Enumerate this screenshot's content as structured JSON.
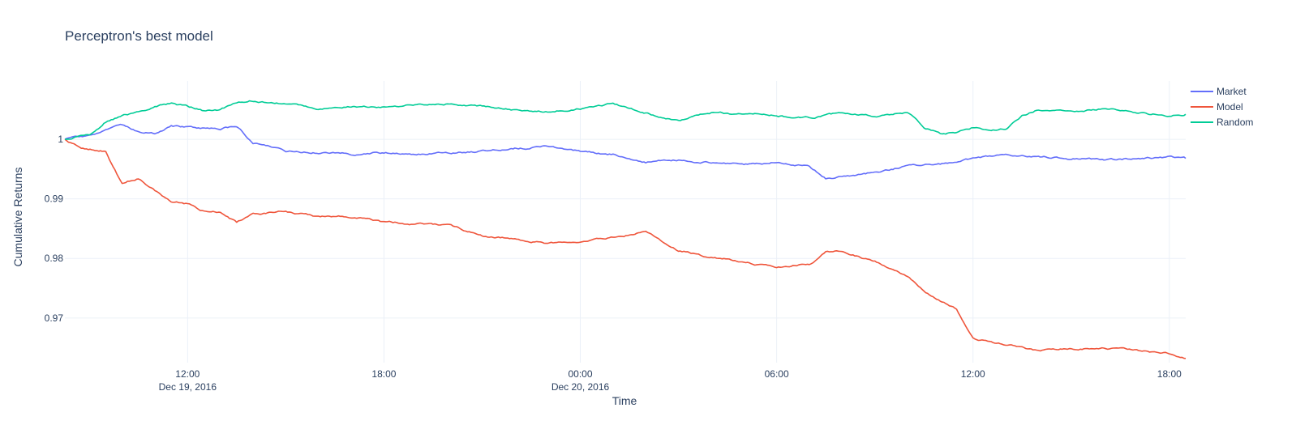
{
  "chart_data": {
    "type": "line",
    "title": "Perceptron's best model",
    "xlabel": "Time",
    "ylabel": "Cumulative Returns",
    "x_range": [
      "2016-12-19 08:15",
      "2016-12-20 18:30"
    ],
    "ylim": [
      0.9625,
      1.0098
    ],
    "grid": true,
    "legend_position": "top-right",
    "x_ticks": [
      {
        "time": "2016-12-19 12:00",
        "label": "12:00",
        "sublabel": "Dec 19, 2016"
      },
      {
        "time": "2016-12-19 18:00",
        "label": "18:00",
        "sublabel": ""
      },
      {
        "time": "2016-12-20 00:00",
        "label": "00:00",
        "sublabel": "Dec 20, 2016"
      },
      {
        "time": "2016-12-20 06:00",
        "label": "06:00",
        "sublabel": ""
      },
      {
        "time": "2016-12-20 12:00",
        "label": "12:00",
        "sublabel": ""
      },
      {
        "time": "2016-12-20 18:00",
        "label": "18:00",
        "sublabel": ""
      }
    ],
    "y_ticks": [
      {
        "value": 0.97,
        "label": "0.97"
      },
      {
        "value": 0.98,
        "label": "0.98"
      },
      {
        "value": 0.99,
        "label": "0.99"
      },
      {
        "value": 1.0,
        "label": "1"
      }
    ],
    "series": [
      {
        "name": "Market",
        "color": "#636efa",
        "points": [
          [
            "2016-12-19 08:15",
            1.0
          ],
          [
            "2016-12-19 09:00",
            1.0005
          ],
          [
            "2016-12-19 09:30",
            1.0015
          ],
          [
            "2016-12-19 10:00",
            1.0022
          ],
          [
            "2016-12-19 10:30",
            1.0012
          ],
          [
            "2016-12-19 11:00",
            1.001
          ],
          [
            "2016-12-19 11:30",
            1.0022
          ],
          [
            "2016-12-19 12:00",
            1.002
          ],
          [
            "2016-12-19 12:30",
            1.0018
          ],
          [
            "2016-12-19 13:00",
            1.0018
          ],
          [
            "2016-12-19 13:30",
            1.0022
          ],
          [
            "2016-12-19 14:00",
            0.9995
          ],
          [
            "2016-12-19 14:30",
            0.999
          ],
          [
            "2016-12-19 15:00",
            0.998
          ],
          [
            "2016-12-19 16:00",
            0.9978
          ],
          [
            "2016-12-19 17:00",
            0.9975
          ],
          [
            "2016-12-19 18:00",
            0.9978
          ],
          [
            "2016-12-19 19:00",
            0.9975
          ],
          [
            "2016-12-19 20:00",
            0.9978
          ],
          [
            "2016-12-19 21:00",
            0.998
          ],
          [
            "2016-12-19 22:00",
            0.9985
          ],
          [
            "2016-12-19 23:00",
            0.9988
          ],
          [
            "2016-12-20 00:00",
            0.998
          ],
          [
            "2016-12-20 01:00",
            0.9975
          ],
          [
            "2016-12-20 02:00",
            0.9962
          ],
          [
            "2016-12-20 03:00",
            0.9965
          ],
          [
            "2016-12-20 04:00",
            0.9962
          ],
          [
            "2016-12-20 05:00",
            0.9958
          ],
          [
            "2016-12-20 06:00",
            0.9962
          ],
          [
            "2016-12-20 07:00",
            0.9955
          ],
          [
            "2016-12-20 07:30",
            0.9935
          ],
          [
            "2016-12-20 08:00",
            0.9938
          ],
          [
            "2016-12-20 08:30",
            0.994
          ],
          [
            "2016-12-20 09:00",
            0.9945
          ],
          [
            "2016-12-20 10:00",
            0.9955
          ],
          [
            "2016-12-20 11:00",
            0.9958
          ],
          [
            "2016-12-20 12:00",
            0.9968
          ],
          [
            "2016-12-20 13:00",
            0.9975
          ],
          [
            "2016-12-20 14:00",
            0.997
          ],
          [
            "2016-12-20 15:00",
            0.9968
          ],
          [
            "2016-12-20 16:00",
            0.9965
          ],
          [
            "2016-12-20 17:00",
            0.9968
          ],
          [
            "2016-12-20 18:00",
            0.997
          ],
          [
            "2016-12-20 18:30",
            0.9968
          ]
        ]
      },
      {
        "name": "Model",
        "color": "#ef553b",
        "points": [
          [
            "2016-12-19 08:15",
            1.0
          ],
          [
            "2016-12-19 08:45",
            0.9985
          ],
          [
            "2016-12-19 09:30",
            0.998
          ],
          [
            "2016-12-19 10:00",
            0.9925
          ],
          [
            "2016-12-19 10:30",
            0.9935
          ],
          [
            "2016-12-19 11:00",
            0.9915
          ],
          [
            "2016-12-19 11:30",
            0.9895
          ],
          [
            "2016-12-19 12:00",
            0.9892
          ],
          [
            "2016-12-19 12:30",
            0.988
          ],
          [
            "2016-12-19 13:00",
            0.9878
          ],
          [
            "2016-12-19 13:30",
            0.986
          ],
          [
            "2016-12-19 14:00",
            0.9875
          ],
          [
            "2016-12-19 15:00",
            0.9878
          ],
          [
            "2016-12-19 16:00",
            0.987
          ],
          [
            "2016-12-19 17:00",
            0.987
          ],
          [
            "2016-12-19 18:00",
            0.986
          ],
          [
            "2016-12-19 19:00",
            0.9858
          ],
          [
            "2016-12-19 20:00",
            0.9855
          ],
          [
            "2016-12-19 21:00",
            0.9838
          ],
          [
            "2016-12-19 22:00",
            0.9832
          ],
          [
            "2016-12-19 23:00",
            0.9825
          ],
          [
            "2016-12-20 00:00",
            0.9828
          ],
          [
            "2016-12-20 01:00",
            0.9835
          ],
          [
            "2016-12-20 02:00",
            0.9845
          ],
          [
            "2016-12-20 03:00",
            0.9815
          ],
          [
            "2016-12-20 04:00",
            0.9802
          ],
          [
            "2016-12-20 05:00",
            0.9795
          ],
          [
            "2016-12-20 06:00",
            0.9785
          ],
          [
            "2016-12-20 07:00",
            0.979
          ],
          [
            "2016-12-20 07:30",
            0.981
          ],
          [
            "2016-12-20 08:00",
            0.9812
          ],
          [
            "2016-12-20 09:00",
            0.9795
          ],
          [
            "2016-12-20 10:00",
            0.977
          ],
          [
            "2016-12-20 10:30",
            0.9745
          ],
          [
            "2016-12-20 11:00",
            0.973
          ],
          [
            "2016-12-20 11:30",
            0.9715
          ],
          [
            "2016-12-20 12:00",
            0.9665
          ],
          [
            "2016-12-20 13:00",
            0.9655
          ],
          [
            "2016-12-20 14:00",
            0.9645
          ],
          [
            "2016-12-20 15:00",
            0.9648
          ],
          [
            "2016-12-20 16:00",
            0.965
          ],
          [
            "2016-12-20 17:00",
            0.9645
          ],
          [
            "2016-12-20 18:00",
            0.964
          ],
          [
            "2016-12-20 18:30",
            0.9632
          ]
        ]
      },
      {
        "name": "Random",
        "color": "#00cc96",
        "points": [
          [
            "2016-12-19 08:15",
            1.0
          ],
          [
            "2016-12-19 09:00",
            1.0008
          ],
          [
            "2016-12-19 09:30",
            1.003
          ],
          [
            "2016-12-19 10:00",
            1.004
          ],
          [
            "2016-12-19 10:30",
            1.0045
          ],
          [
            "2016-12-19 11:00",
            1.0055
          ],
          [
            "2016-12-19 11:30",
            1.006
          ],
          [
            "2016-12-19 12:00",
            1.0055
          ],
          [
            "2016-12-19 12:30",
            1.0048
          ],
          [
            "2016-12-19 13:00",
            1.005
          ],
          [
            "2016-12-19 13:30",
            1.0062
          ],
          [
            "2016-12-19 14:00",
            1.0065
          ],
          [
            "2016-12-19 15:00",
            1.006
          ],
          [
            "2016-12-19 16:00",
            1.0052
          ],
          [
            "2016-12-19 17:00",
            1.0055
          ],
          [
            "2016-12-19 18:00",
            1.0055
          ],
          [
            "2016-12-19 19:00",
            1.0058
          ],
          [
            "2016-12-19 20:00",
            1.006
          ],
          [
            "2016-12-19 21:00",
            1.0055
          ],
          [
            "2016-12-19 22:00",
            1.005
          ],
          [
            "2016-12-19 23:00",
            1.0048
          ],
          [
            "2016-12-20 00:00",
            1.0052
          ],
          [
            "2016-12-20 01:00",
            1.006
          ],
          [
            "2016-12-20 02:00",
            1.0045
          ],
          [
            "2016-12-20 03:00",
            1.003
          ],
          [
            "2016-12-20 04:00",
            1.0045
          ],
          [
            "2016-12-20 05:00",
            1.0042
          ],
          [
            "2016-12-20 06:00",
            1.004
          ],
          [
            "2016-12-20 07:00",
            1.0035
          ],
          [
            "2016-12-20 08:00",
            1.0045
          ],
          [
            "2016-12-20 09:00",
            1.004
          ],
          [
            "2016-12-20 10:00",
            1.0045
          ],
          [
            "2016-12-20 10:30",
            1.002
          ],
          [
            "2016-12-20 11:00",
            1.001
          ],
          [
            "2016-12-20 11:30",
            1.0012
          ],
          [
            "2016-12-20 12:00",
            1.002
          ],
          [
            "2016-12-20 12:30",
            1.0015
          ],
          [
            "2016-12-20 13:00",
            1.0018
          ],
          [
            "2016-12-20 13:30",
            1.004
          ],
          [
            "2016-12-20 14:00",
            1.005
          ],
          [
            "2016-12-20 15:00",
            1.0048
          ],
          [
            "2016-12-20 16:00",
            1.0052
          ],
          [
            "2016-12-20 17:00",
            1.0045
          ],
          [
            "2016-12-20 18:00",
            1.004
          ],
          [
            "2016-12-20 18:30",
            1.0042
          ]
        ]
      }
    ]
  }
}
